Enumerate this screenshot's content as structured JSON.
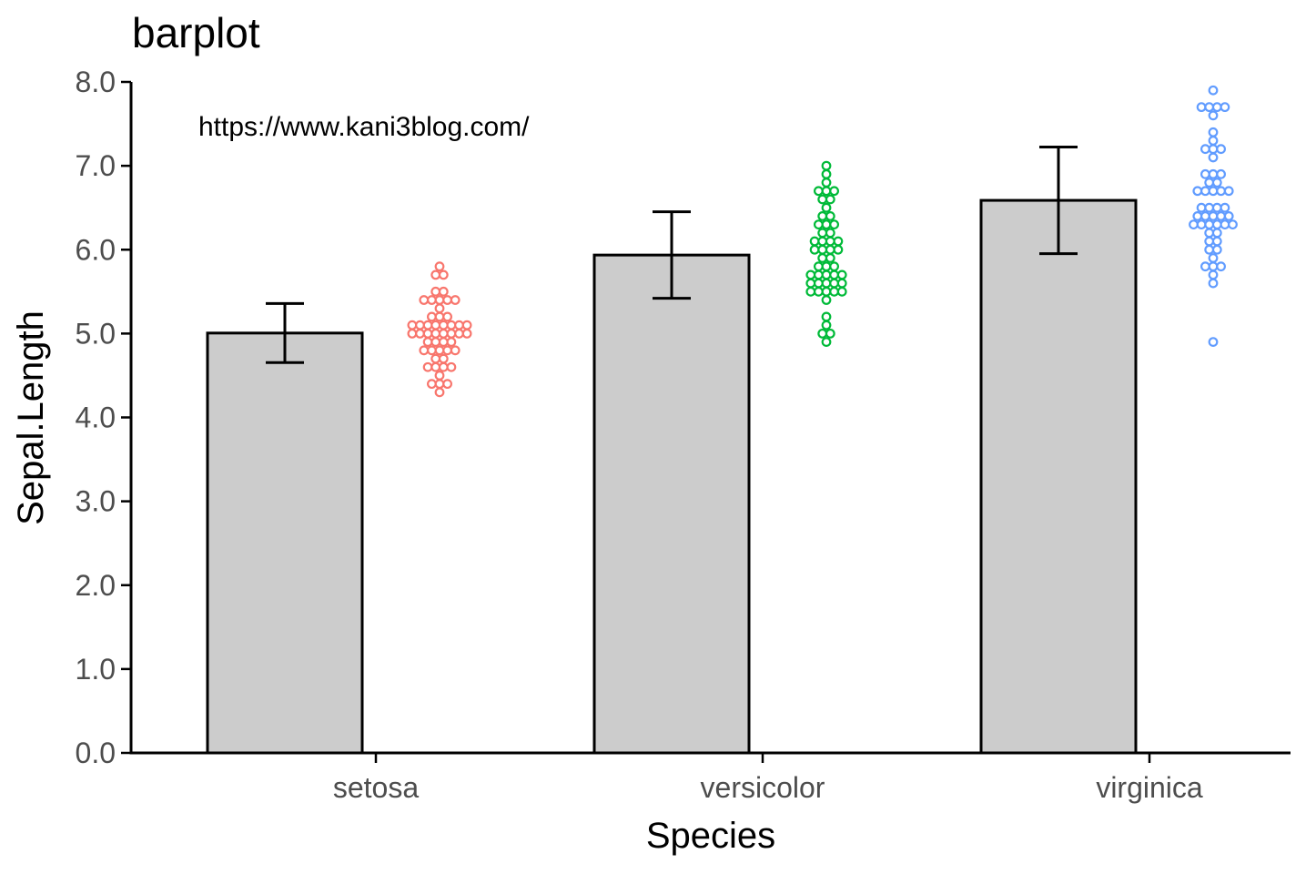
{
  "chart_data": {
    "type": "bar",
    "title": "barplot",
    "xlabel": "Species",
    "ylabel": "Sepal.Length",
    "annotation": "https://www.kani3blog.com/",
    "categories": [
      "setosa",
      "versicolor",
      "virginica"
    ],
    "values": [
      5.006,
      5.936,
      6.588
    ],
    "error_bars": [
      {
        "low": 4.654,
        "high": 5.358
      },
      {
        "low": 5.42,
        "high": 6.452
      },
      {
        "low": 5.952,
        "high": 7.224
      }
    ],
    "ylim": [
      0,
      8
    ],
    "yticks": [
      "0.0",
      "1.0",
      "2.0",
      "3.0",
      "4.0",
      "5.0",
      "6.0",
      "7.0",
      "8.0"
    ],
    "bar_color": "#cccccc",
    "grid": false,
    "dotplot": [
      {
        "category": "setosa",
        "color": "#f8766d",
        "values": [
          5.1,
          4.9,
          4.7,
          4.6,
          5.0,
          5.4,
          4.6,
          5.0,
          4.4,
          4.9,
          5.4,
          4.8,
          4.8,
          4.3,
          5.8,
          5.7,
          5.4,
          5.1,
          5.7,
          5.1,
          5.4,
          5.1,
          4.6,
          5.1,
          4.8,
          5.0,
          5.0,
          5.2,
          5.2,
          4.7,
          4.8,
          5.4,
          5.2,
          5.5,
          4.9,
          5.0,
          5.5,
          4.9,
          4.4,
          5.1,
          5.0,
          4.5,
          4.4,
          5.0,
          5.1,
          4.8,
          5.1,
          4.6,
          5.3,
          5.0
        ]
      },
      {
        "category": "versicolor",
        "color": "#00ba38",
        "values": [
          7.0,
          6.4,
          6.9,
          5.5,
          6.5,
          5.7,
          6.3,
          4.9,
          6.6,
          5.2,
          5.0,
          5.9,
          6.0,
          6.1,
          5.6,
          6.7,
          5.6,
          5.8,
          6.2,
          5.6,
          5.9,
          6.1,
          6.3,
          6.1,
          6.4,
          6.6,
          6.8,
          6.7,
          6.0,
          5.7,
          5.5,
          5.5,
          5.8,
          6.0,
          5.4,
          6.0,
          6.7,
          6.3,
          5.6,
          5.5,
          5.5,
          6.1,
          5.8,
          5.0,
          5.6,
          5.7,
          5.7,
          6.2,
          5.1,
          5.7
        ]
      },
      {
        "category": "virginica",
        "color": "#619cff",
        "values": [
          6.3,
          5.8,
          7.1,
          6.3,
          6.5,
          7.6,
          4.9,
          7.3,
          6.7,
          7.2,
          6.5,
          6.4,
          6.8,
          5.7,
          5.8,
          6.4,
          6.5,
          7.7,
          7.7,
          6.0,
          6.9,
          5.6,
          7.7,
          6.3,
          6.7,
          7.2,
          6.2,
          6.1,
          6.4,
          7.2,
          7.4,
          7.9,
          6.4,
          6.3,
          6.1,
          7.7,
          6.3,
          6.4,
          6.0,
          6.9,
          6.7,
          6.9,
          5.8,
          6.8,
          6.7,
          6.7,
          6.3,
          6.5,
          6.2,
          5.9
        ]
      }
    ]
  }
}
